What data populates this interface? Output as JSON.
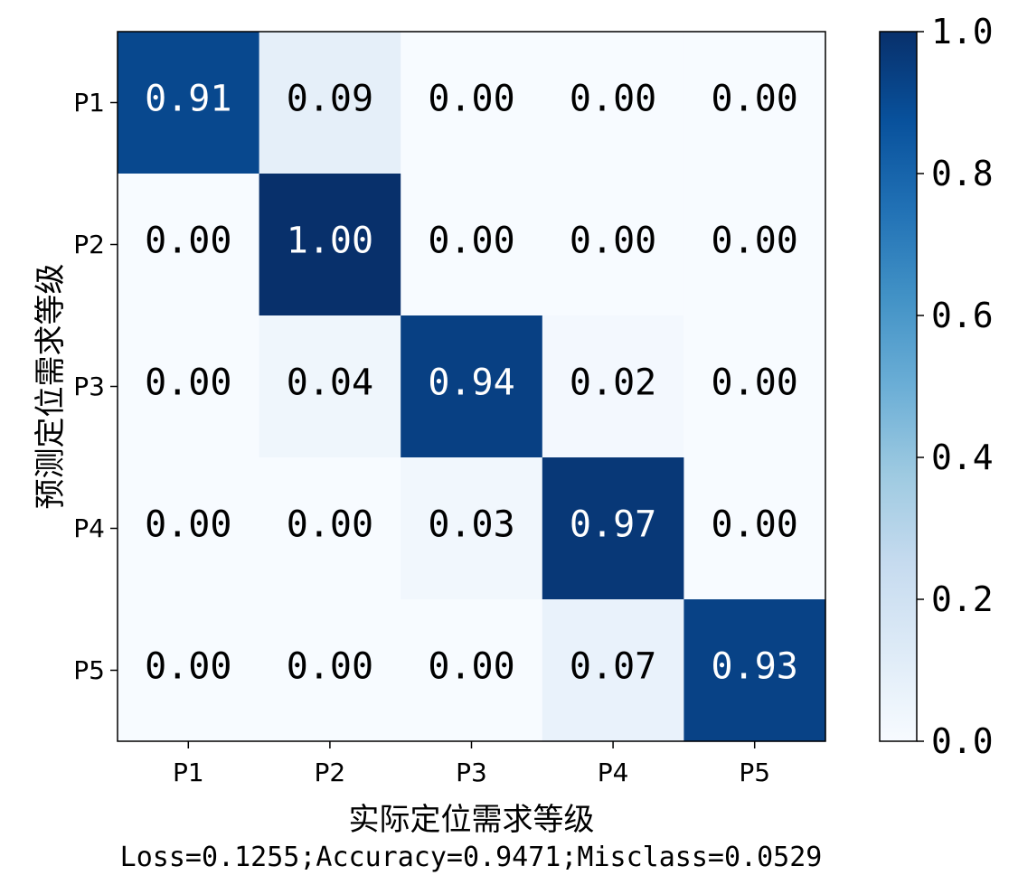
{
  "chart_data": {
    "type": "heatmap",
    "title": "",
    "xlabel": "实际定位需求等级",
    "ylabel": "预测定位需求等级",
    "x_categories": [
      "P1",
      "P2",
      "P3",
      "P4",
      "P5"
    ],
    "y_categories": [
      "P1",
      "P2",
      "P3",
      "P4",
      "P5"
    ],
    "matrix": [
      [
        0.91,
        0.09,
        0.0,
        0.0,
        0.0
      ],
      [
        0.0,
        1.0,
        0.0,
        0.0,
        0.0
      ],
      [
        0.0,
        0.04,
        0.94,
        0.02,
        0.0
      ],
      [
        0.0,
        0.0,
        0.03,
        0.97,
        0.0
      ],
      [
        0.0,
        0.0,
        0.0,
        0.07,
        0.93
      ]
    ],
    "cell_labels": [
      [
        "0.91",
        "0.09",
        "0.00",
        "0.00",
        "0.00"
      ],
      [
        "0.00",
        "1.00",
        "0.00",
        "0.00",
        "0.00"
      ],
      [
        "0.00",
        "0.04",
        "0.94",
        "0.02",
        "0.00"
      ],
      [
        "0.00",
        "0.00",
        "0.03",
        "0.97",
        "0.00"
      ],
      [
        "0.00",
        "0.00",
        "0.00",
        "0.07",
        "0.93"
      ]
    ],
    "colorbar": {
      "colormap": "Blues",
      "range": [
        0.0,
        1.0
      ],
      "ticks": [
        0.0,
        0.2,
        0.4,
        0.6,
        0.8,
        1.0
      ],
      "tick_labels": [
        "0.0",
        "0.2",
        "0.4",
        "0.6",
        "0.8",
        "1.0"
      ]
    },
    "stats_text": "Loss=0.1255;Accuracy=0.9471;Misclass=0.0529",
    "grid": false,
    "legend": "none"
  }
}
